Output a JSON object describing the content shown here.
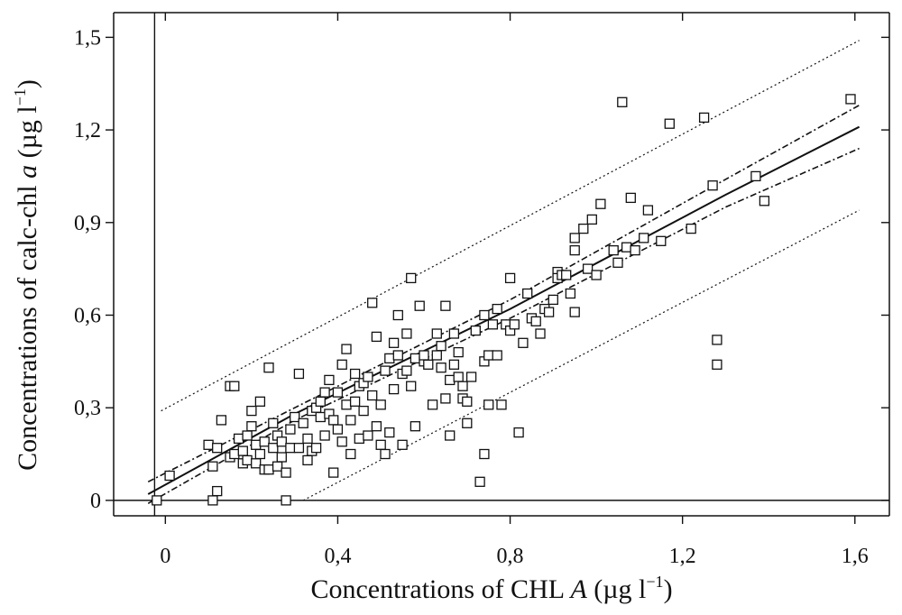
{
  "chart_data": {
    "type": "scatter",
    "title": "",
    "xlabel": {
      "pre": "Concentrations of CHL ",
      "var": "A",
      "unit": " (µg l",
      "sup": "−1",
      "close": ")"
    },
    "ylabel": {
      "pre": "Concentrations of calc-chl ",
      "var": "a",
      "unit": " (µg l",
      "sup": "−1",
      "close": ")"
    },
    "xlim": [
      -0.12,
      1.68
    ],
    "ylim": [
      -0.05,
      1.58
    ],
    "x_ticks": [
      {
        "value": 0,
        "label": "0"
      },
      {
        "value": 0.4,
        "label": "0,4"
      },
      {
        "value": 0.8,
        "label": "0,8"
      },
      {
        "value": 1.2,
        "label": "1,2"
      },
      {
        "value": 1.6,
        "label": "1,6"
      }
    ],
    "y_ticks": [
      {
        "value": 0,
        "label": "0"
      },
      {
        "value": 0.3,
        "label": "0,3"
      },
      {
        "value": 0.6,
        "label": "0,6"
      },
      {
        "value": 0.9,
        "label": "0,9"
      },
      {
        "value": 1.2,
        "label": "1,2"
      },
      {
        "value": 1.5,
        "label": "1,5"
      }
    ],
    "grid": false,
    "regression": {
      "fit": [
        [
          -0.04,
          0.02
        ],
        [
          0.3,
          0.28
        ],
        [
          0.8,
          0.62
        ],
        [
          1.3,
          0.99
        ],
        [
          1.61,
          1.21
        ]
      ],
      "confidence_upper": [
        [
          -0.04,
          0.06
        ],
        [
          0.3,
          0.3
        ],
        [
          0.8,
          0.65
        ],
        [
          1.3,
          1.04
        ],
        [
          1.61,
          1.28
        ]
      ],
      "confidence_lower": [
        [
          -0.04,
          -0.01
        ],
        [
          0.3,
          0.26
        ],
        [
          0.8,
          0.59
        ],
        [
          1.3,
          0.95
        ],
        [
          1.61,
          1.14
        ]
      ],
      "prediction_upper": [
        [
          -0.01,
          0.29
        ],
        [
          1.61,
          1.49
        ]
      ],
      "prediction_lower": [
        [
          0.32,
          0.0
        ],
        [
          1.61,
          0.94
        ]
      ]
    },
    "series": [
      {
        "name": "observations",
        "points": [
          [
            -0.02,
            0.0
          ],
          [
            0.01,
            0.08
          ],
          [
            0.1,
            0.18
          ],
          [
            0.11,
            0.0
          ],
          [
            0.11,
            0.11
          ],
          [
            0.12,
            0.17
          ],
          [
            0.12,
            0.03
          ],
          [
            0.13,
            0.26
          ],
          [
            0.15,
            0.37
          ],
          [
            0.16,
            0.37
          ],
          [
            0.15,
            0.14
          ],
          [
            0.16,
            0.15
          ],
          [
            0.17,
            0.2
          ],
          [
            0.18,
            0.12
          ],
          [
            0.18,
            0.16
          ],
          [
            0.19,
            0.21
          ],
          [
            0.19,
            0.13
          ],
          [
            0.2,
            0.24
          ],
          [
            0.2,
            0.29
          ],
          [
            0.21,
            0.18
          ],
          [
            0.21,
            0.12
          ],
          [
            0.22,
            0.32
          ],
          [
            0.22,
            0.15
          ],
          [
            0.23,
            0.1
          ],
          [
            0.23,
            0.19
          ],
          [
            0.24,
            0.1
          ],
          [
            0.24,
            0.43
          ],
          [
            0.25,
            0.25
          ],
          [
            0.25,
            0.17
          ],
          [
            0.26,
            0.11
          ],
          [
            0.26,
            0.21
          ],
          [
            0.27,
            0.14
          ],
          [
            0.27,
            0.19
          ],
          [
            0.28,
            0.0
          ],
          [
            0.28,
            0.09
          ],
          [
            0.29,
            0.17
          ],
          [
            0.29,
            0.23
          ],
          [
            0.3,
            0.27
          ],
          [
            0.31,
            0.41
          ],
          [
            0.31,
            0.17
          ],
          [
            0.32,
            0.25
          ],
          [
            0.33,
            0.2
          ],
          [
            0.33,
            0.13
          ],
          [
            0.34,
            0.29
          ],
          [
            0.34,
            0.16
          ],
          [
            0.35,
            0.17
          ],
          [
            0.35,
            0.3
          ],
          [
            0.36,
            0.27
          ],
          [
            0.36,
            0.32
          ],
          [
            0.37,
            0.21
          ],
          [
            0.37,
            0.35
          ],
          [
            0.38,
            0.28
          ],
          [
            0.38,
            0.39
          ],
          [
            0.39,
            0.26
          ],
          [
            0.39,
            0.09
          ],
          [
            0.4,
            0.35
          ],
          [
            0.4,
            0.23
          ],
          [
            0.41,
            0.44
          ],
          [
            0.41,
            0.19
          ],
          [
            0.42,
            0.31
          ],
          [
            0.42,
            0.49
          ],
          [
            0.43,
            0.26
          ],
          [
            0.43,
            0.15
          ],
          [
            0.44,
            0.32
          ],
          [
            0.44,
            0.41
          ],
          [
            0.45,
            0.37
          ],
          [
            0.45,
            0.2
          ],
          [
            0.46,
            0.38
          ],
          [
            0.46,
            0.29
          ],
          [
            0.47,
            0.21
          ],
          [
            0.47,
            0.4
          ],
          [
            0.48,
            0.64
          ],
          [
            0.48,
            0.34
          ],
          [
            0.49,
            0.53
          ],
          [
            0.49,
            0.24
          ],
          [
            0.5,
            0.31
          ],
          [
            0.5,
            0.18
          ],
          [
            0.51,
            0.42
          ],
          [
            0.51,
            0.15
          ],
          [
            0.52,
            0.46
          ],
          [
            0.52,
            0.22
          ],
          [
            0.53,
            0.51
          ],
          [
            0.53,
            0.36
          ],
          [
            0.54,
            0.6
          ],
          [
            0.54,
            0.47
          ],
          [
            0.55,
            0.18
          ],
          [
            0.55,
            0.41
          ],
          [
            0.56,
            0.54
          ],
          [
            0.56,
            0.42
          ],
          [
            0.57,
            0.72
          ],
          [
            0.57,
            0.37
          ],
          [
            0.58,
            0.46
          ],
          [
            0.58,
            0.24
          ],
          [
            0.59,
            0.63
          ],
          [
            0.6,
            0.45
          ],
          [
            0.6,
            0.47
          ],
          [
            0.61,
            0.44
          ],
          [
            0.62,
            0.31
          ],
          [
            0.63,
            0.54
          ],
          [
            0.63,
            0.47
          ],
          [
            0.64,
            0.5
          ],
          [
            0.64,
            0.43
          ],
          [
            0.65,
            0.63
          ],
          [
            0.65,
            0.33
          ],
          [
            0.66,
            0.39
          ],
          [
            0.66,
            0.21
          ],
          [
            0.67,
            0.54
          ],
          [
            0.67,
            0.44
          ],
          [
            0.68,
            0.4
          ],
          [
            0.68,
            0.48
          ],
          [
            0.69,
            0.33
          ],
          [
            0.69,
            0.37
          ],
          [
            0.7,
            0.25
          ],
          [
            0.7,
            0.32
          ],
          [
            0.71,
            0.4
          ],
          [
            0.72,
            0.55
          ],
          [
            0.73,
            0.06
          ],
          [
            0.74,
            0.45
          ],
          [
            0.74,
            0.6
          ],
          [
            0.74,
            0.15
          ],
          [
            0.75,
            0.31
          ],
          [
            0.75,
            0.47
          ],
          [
            0.76,
            0.57
          ],
          [
            0.77,
            0.62
          ],
          [
            0.77,
            0.47
          ],
          [
            0.78,
            0.31
          ],
          [
            0.79,
            0.57
          ],
          [
            0.8,
            0.72
          ],
          [
            0.8,
            0.55
          ],
          [
            0.81,
            0.57
          ],
          [
            0.82,
            0.22
          ],
          [
            0.83,
            0.51
          ],
          [
            0.84,
            0.67
          ],
          [
            0.85,
            0.59
          ],
          [
            0.86,
            0.58
          ],
          [
            0.87,
            0.54
          ],
          [
            0.88,
            0.62
          ],
          [
            0.89,
            0.61
          ],
          [
            0.9,
            0.65
          ],
          [
            0.91,
            0.74
          ],
          [
            0.91,
            0.72
          ],
          [
            0.92,
            0.73
          ],
          [
            0.93,
            0.73
          ],
          [
            0.94,
            0.67
          ],
          [
            0.95,
            0.61
          ],
          [
            0.95,
            0.81
          ],
          [
            0.95,
            0.85
          ],
          [
            0.97,
            0.88
          ],
          [
            0.98,
            0.75
          ],
          [
            0.99,
            0.91
          ],
          [
            1.0,
            0.73
          ],
          [
            1.01,
            0.96
          ],
          [
            1.04,
            0.81
          ],
          [
            1.05,
            0.77
          ],
          [
            1.06,
            1.29
          ],
          [
            1.07,
            0.82
          ],
          [
            1.08,
            0.98
          ],
          [
            1.09,
            0.81
          ],
          [
            1.11,
            0.85
          ],
          [
            1.12,
            0.94
          ],
          [
            1.15,
            0.84
          ],
          [
            1.17,
            1.22
          ],
          [
            1.22,
            0.88
          ],
          [
            1.25,
            1.24
          ],
          [
            1.27,
            1.02
          ],
          [
            1.28,
            0.52
          ],
          [
            1.28,
            0.44
          ],
          [
            1.37,
            1.05
          ],
          [
            1.39,
            0.97
          ],
          [
            1.59,
            1.3
          ]
        ]
      }
    ]
  }
}
